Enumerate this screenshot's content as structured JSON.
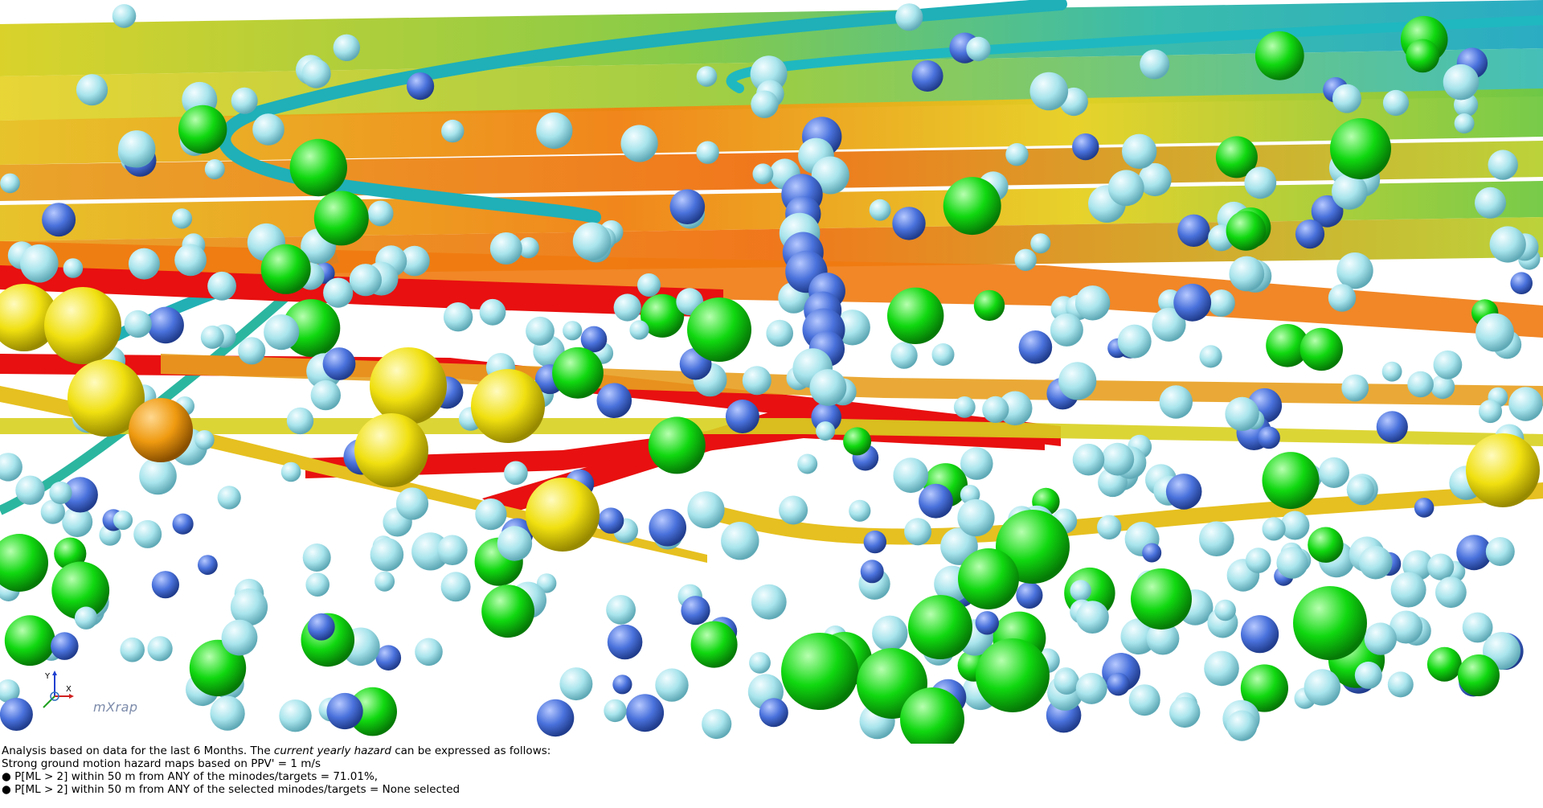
{
  "viewport": {
    "colors": {
      "event_small": "#a8e4ec",
      "event_medium": "#4a72dc",
      "event_large": "#10d810",
      "event_larger": "#f0e010",
      "event_largest": "#ef9a10",
      "drive_hot": "#e81010",
      "drive_warm": "#f08010",
      "drive_mid": "#e6d020",
      "drive_cool": "#70c840",
      "drive_cold": "#20b0b8"
    },
    "axis": {
      "y_label": "Y",
      "x_label": "X"
    },
    "watermark": "mXrap"
  },
  "info": {
    "line1_pre": "Analysis based on data for the last 6 Months. The ",
    "line1_em": "current yearly hazard",
    "line1_post": " can be expressed as follows:",
    "line2": "Strong ground motion hazard maps based on PPV' = 1 m/s",
    "bullet1": "● P[ML > 2] within 50 m from ANY of the minodes/targets = 71.01%,",
    "bullet2": "● P[ML > 2] within 50 m from ANY of the selected minodes/targets = None selected"
  }
}
